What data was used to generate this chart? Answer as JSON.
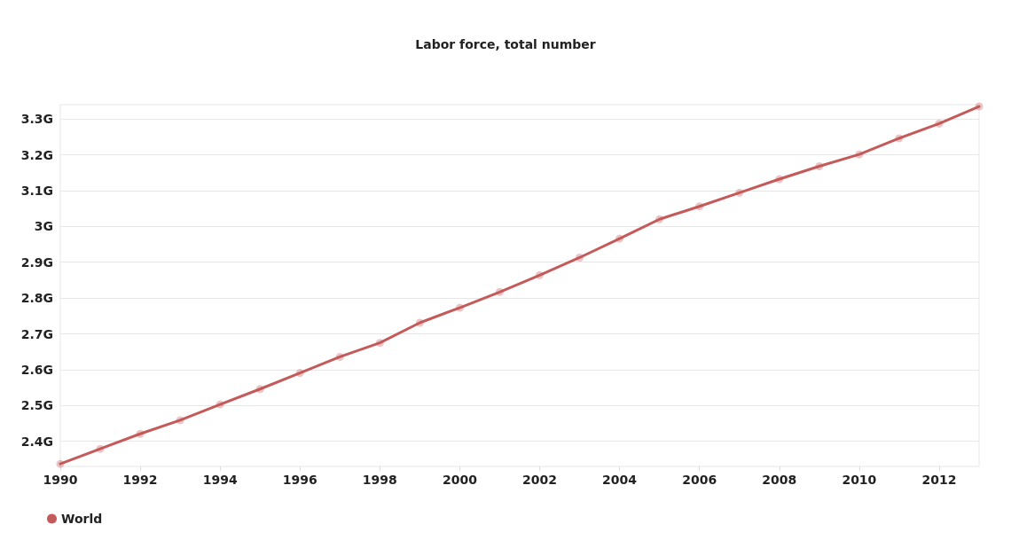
{
  "chart_data": {
    "type": "line",
    "title": "Labor force, total number",
    "x": [
      1990,
      1991,
      1992,
      1993,
      1994,
      1995,
      1996,
      1997,
      1998,
      1999,
      2000,
      2001,
      2002,
      2003,
      2004,
      2005,
      2006,
      2007,
      2008,
      2009,
      2010,
      2011,
      2012,
      2013
    ],
    "series": [
      {
        "name": "World",
        "color": "#c45a5a",
        "values": [
          2.337,
          2.379,
          2.421,
          2.459,
          2.503,
          2.546,
          2.591,
          2.636,
          2.675,
          2.731,
          2.773,
          2.817,
          2.864,
          2.913,
          2.966,
          3.02,
          3.056,
          3.094,
          3.132,
          3.168,
          3.201,
          3.246,
          3.287,
          3.335
        ]
      }
    ],
    "xlim": [
      1990,
      2013
    ],
    "xticks": [
      1990,
      1992,
      1994,
      1996,
      1998,
      2000,
      2002,
      2004,
      2006,
      2008,
      2010,
      2012
    ],
    "ylim": [
      2.33,
      3.34
    ],
    "yticks": [
      {
        "value": 2.4,
        "label": "2.4G"
      },
      {
        "value": 2.5,
        "label": "2.5G"
      },
      {
        "value": 2.6,
        "label": "2.6G"
      },
      {
        "value": 2.7,
        "label": "2.7G"
      },
      {
        "value": 2.8,
        "label": "2.8G"
      },
      {
        "value": 2.9,
        "label": "2.9G"
      },
      {
        "value": 3,
        "label": "3G"
      },
      {
        "value": 3.1,
        "label": "3.1G"
      },
      {
        "value": 3.2,
        "label": "3.2G"
      },
      {
        "value": 3.3,
        "label": "3.3G"
      }
    ],
    "grid": "y",
    "legend": "bottom left",
    "marker": "circle",
    "line_style": "solid"
  }
}
